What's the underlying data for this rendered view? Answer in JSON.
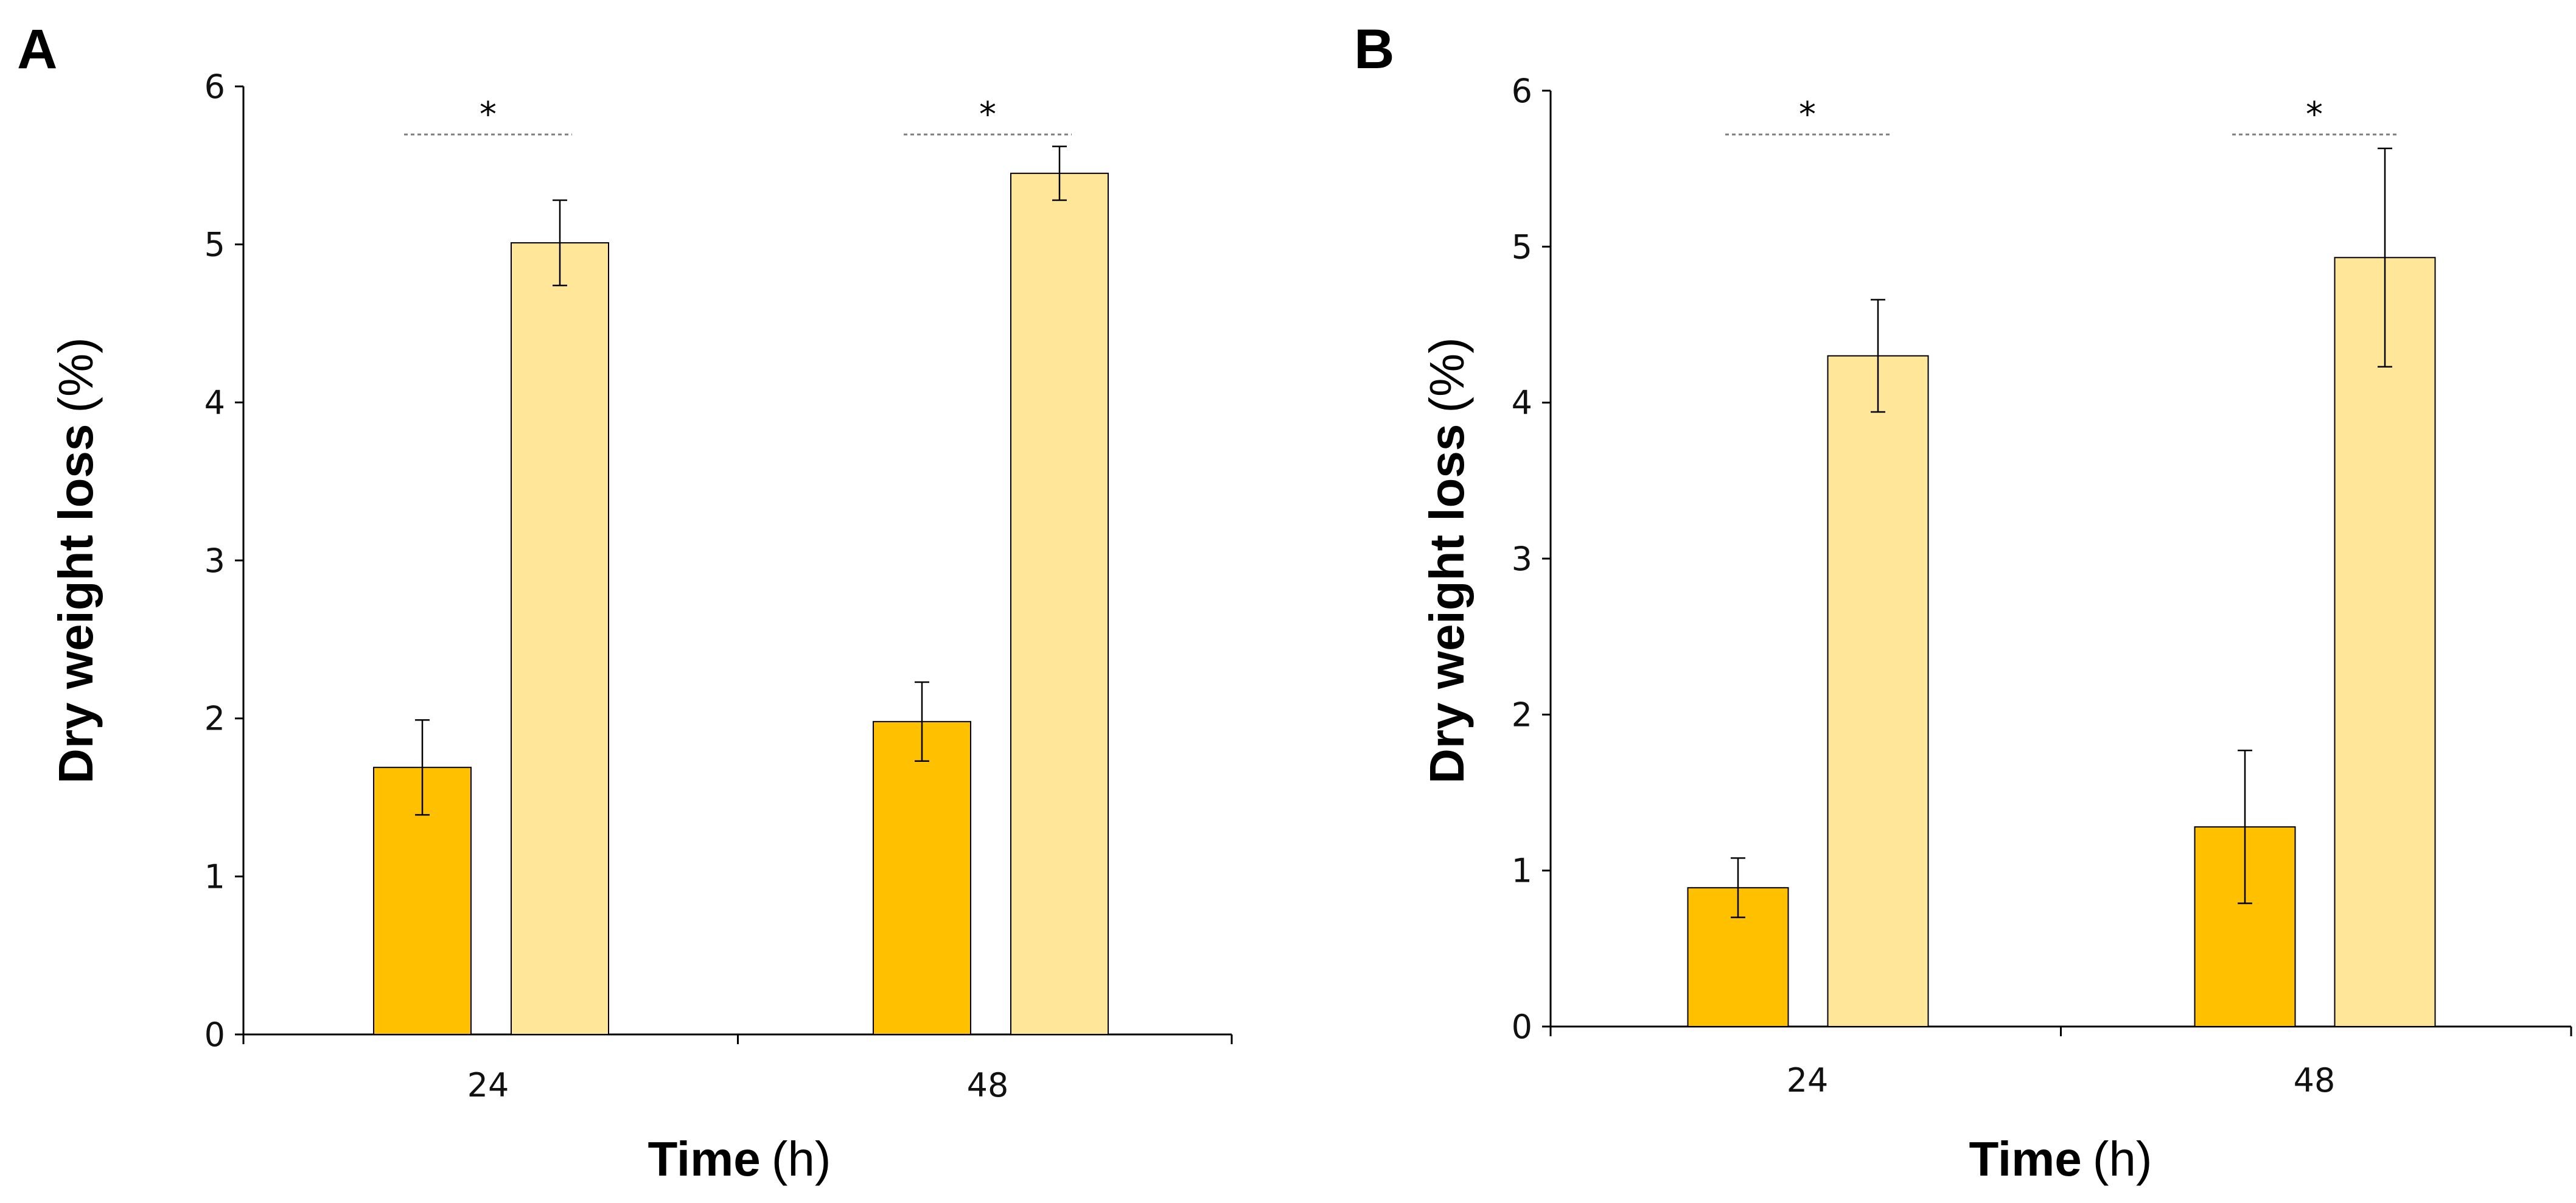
{
  "colors": {
    "series_dark": "#FFC000",
    "series_light": "#FFE699",
    "bar_stroke": "#000000",
    "axis": "#000000",
    "sig_line": "#7f7f7f"
  },
  "chart_data": [
    {
      "type": "bar",
      "panel_label": "A",
      "categories": [
        "24",
        "48"
      ],
      "series": [
        {
          "values": [
            1.69,
            1.98
          ],
          "errors": [
            0.3,
            0.25
          ],
          "color": "#FFC000"
        },
        {
          "values": [
            5.01,
            5.45
          ],
          "errors": [
            0.27,
            0.17
          ],
          "color": "#FFE699"
        }
      ],
      "significance": [
        "*",
        "*"
      ],
      "xlabel": "Time",
      "xlabel_unit": "(h)",
      "ylabel": "Dry weight loss",
      "ylabel_unit": "(%)",
      "ylim": [
        0,
        6
      ],
      "yticks": [
        "0",
        "1",
        "2",
        "3",
        "4",
        "5",
        "6"
      ],
      "grid": false,
      "legend": "none"
    },
    {
      "type": "bar",
      "panel_label": "B",
      "categories": [
        "24",
        "48"
      ],
      "series": [
        {
          "values": [
            0.89,
            1.28
          ],
          "errors": [
            0.19,
            0.49
          ],
          "color": "#FFC000"
        },
        {
          "values": [
            4.3,
            4.93
          ],
          "errors": [
            0.36,
            0.7
          ],
          "color": "#FFE699"
        }
      ],
      "significance": [
        "*",
        "*"
      ],
      "xlabel": "Time",
      "xlabel_unit": "(h)",
      "ylabel": "Dry weight loss",
      "ylabel_unit": "(%)",
      "ylim": [
        0,
        6
      ],
      "yticks": [
        "0",
        "1",
        "2",
        "3",
        "4",
        "5",
        "6"
      ],
      "grid": false,
      "legend": "none"
    }
  ]
}
